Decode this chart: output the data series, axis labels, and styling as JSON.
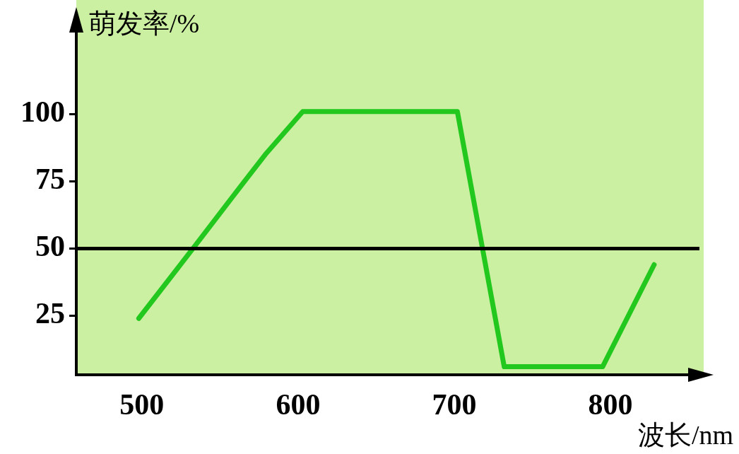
{
  "chart_data": {
    "type": "line",
    "xlabel": "波长/nm",
    "ylabel": "萌发率/%",
    "x": [
      498,
      534,
      559,
      579,
      603,
      702,
      732,
      795,
      828
    ],
    "values": [
      24,
      51,
      70,
      85,
      101,
      101,
      6,
      6,
      44
    ],
    "color": "#22c81e",
    "xlim": [
      458,
      857
    ],
    "xticks": [
      500,
      600,
      700,
      800
    ],
    "ylim": [
      3,
      132
    ],
    "yticks": [
      25,
      50,
      75,
      100
    ],
    "grid": false,
    "legend": false,
    "marker": "none",
    "line_style": "solid",
    "ref_lines": [
      {
        "axis": "y",
        "value": 50,
        "color": "#000000"
      }
    ]
  }
}
